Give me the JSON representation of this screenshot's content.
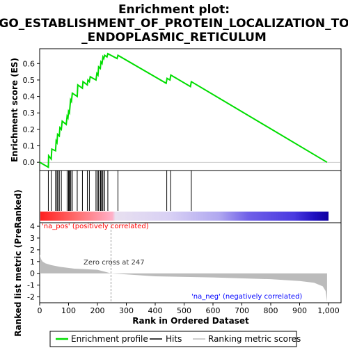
{
  "title_lines": [
    "Enrichment plot:",
    "GO_ESTABLISHMENT_OF_PROTEIN_LOCALIZATION_TO",
    "_ENDOPLASMIC_RETICULUM"
  ],
  "colors": {
    "es_line": "#00dd00",
    "hits": "#000000",
    "metric_fill": "#bbbbbb",
    "pos_label": "#ff0000",
    "neg_label": "#0000ff"
  },
  "chart_data": [
    {
      "type": "line",
      "name": "enrichment-score",
      "ylabel": "Enrichment score (ES)",
      "ylim": [
        -0.05,
        0.69
      ],
      "yticks": [
        "0.0",
        "0.1",
        "0.2",
        "0.3",
        "0.4",
        "0.5",
        "0.6"
      ],
      "points": [
        [
          0,
          0.0
        ],
        [
          30,
          -0.03
        ],
        [
          31,
          0.04
        ],
        [
          40,
          0.02
        ],
        [
          42,
          0.08
        ],
        [
          55,
          0.07
        ],
        [
          57,
          0.13
        ],
        [
          60,
          0.12
        ],
        [
          62,
          0.17
        ],
        [
          68,
          0.16
        ],
        [
          70,
          0.21
        ],
        [
          75,
          0.2
        ],
        [
          78,
          0.25
        ],
        [
          92,
          0.23
        ],
        [
          95,
          0.28
        ],
        [
          98,
          0.27
        ],
        [
          100,
          0.31
        ],
        [
          103,
          0.3
        ],
        [
          105,
          0.34
        ],
        [
          107,
          0.38
        ],
        [
          110,
          0.37
        ],
        [
          113,
          0.42
        ],
        [
          130,
          0.4
        ],
        [
          132,
          0.47
        ],
        [
          148,
          0.45
        ],
        [
          150,
          0.49
        ],
        [
          165,
          0.47
        ],
        [
          167,
          0.5
        ],
        [
          172,
          0.49
        ],
        [
          175,
          0.52
        ],
        [
          195,
          0.5
        ],
        [
          198,
          0.54
        ],
        [
          202,
          0.53
        ],
        [
          204,
          0.58
        ],
        [
          210,
          0.57
        ],
        [
          212,
          0.61
        ],
        [
          216,
          0.6
        ],
        [
          219,
          0.64
        ],
        [
          222,
          0.63
        ],
        [
          225,
          0.65
        ],
        [
          233,
          0.64
        ],
        [
          236,
          0.66
        ],
        [
          268,
          0.63
        ],
        [
          271,
          0.65
        ],
        [
          438,
          0.48
        ],
        [
          441,
          0.51
        ],
        [
          451,
          0.5
        ],
        [
          454,
          0.53
        ],
        [
          522,
          0.46
        ],
        [
          525,
          0.49
        ],
        [
          995,
          0.0
        ]
      ]
    },
    {
      "type": "scatter",
      "name": "hits",
      "xlabel": "",
      "x": [
        30,
        40,
        55,
        60,
        63,
        68,
        75,
        95,
        100,
        103,
        105,
        108,
        113,
        130,
        148,
        165,
        172,
        195,
        200,
        204,
        210,
        212,
        216,
        219,
        225,
        236,
        271,
        440,
        453,
        525
      ]
    },
    {
      "type": "area",
      "name": "ranked-list-metric",
      "xlabel": "Rank in Ordered Dataset",
      "ylabel": "Ranked list metric (PreRanked)",
      "xlim": [
        0,
        1000
      ],
      "ylim": [
        -2.5,
        4.3
      ],
      "xticks": [
        "0",
        "100",
        "200",
        "300",
        "400",
        "500",
        "600",
        "700",
        "800",
        "900",
        "1,000"
      ],
      "yticks": [
        "-2",
        "-1",
        "0",
        "1",
        "2",
        "3",
        "4"
      ],
      "zero_cross": 247,
      "points": [
        [
          0,
          1.6
        ],
        [
          5,
          1.2
        ],
        [
          10,
          1.0
        ],
        [
          20,
          0.85
        ],
        [
          40,
          0.7
        ],
        [
          70,
          0.55
        ],
        [
          120,
          0.4
        ],
        [
          200,
          0.3
        ],
        [
          247,
          0.0
        ],
        [
          400,
          -0.25
        ],
        [
          600,
          -0.35
        ],
        [
          800,
          -0.5
        ],
        [
          900,
          -0.65
        ],
        [
          950,
          -0.8
        ],
        [
          980,
          -1.1
        ],
        [
          990,
          -1.5
        ],
        [
          995,
          -2.4
        ]
      ],
      "annotations": [
        "'na_pos' (positively correlated)",
        "Zero cross at 247",
        "'na_neg' (negatively correlated)"
      ]
    }
  ],
  "legend": [
    "Enrichment profile",
    "Hits",
    "Ranking metric scores"
  ]
}
